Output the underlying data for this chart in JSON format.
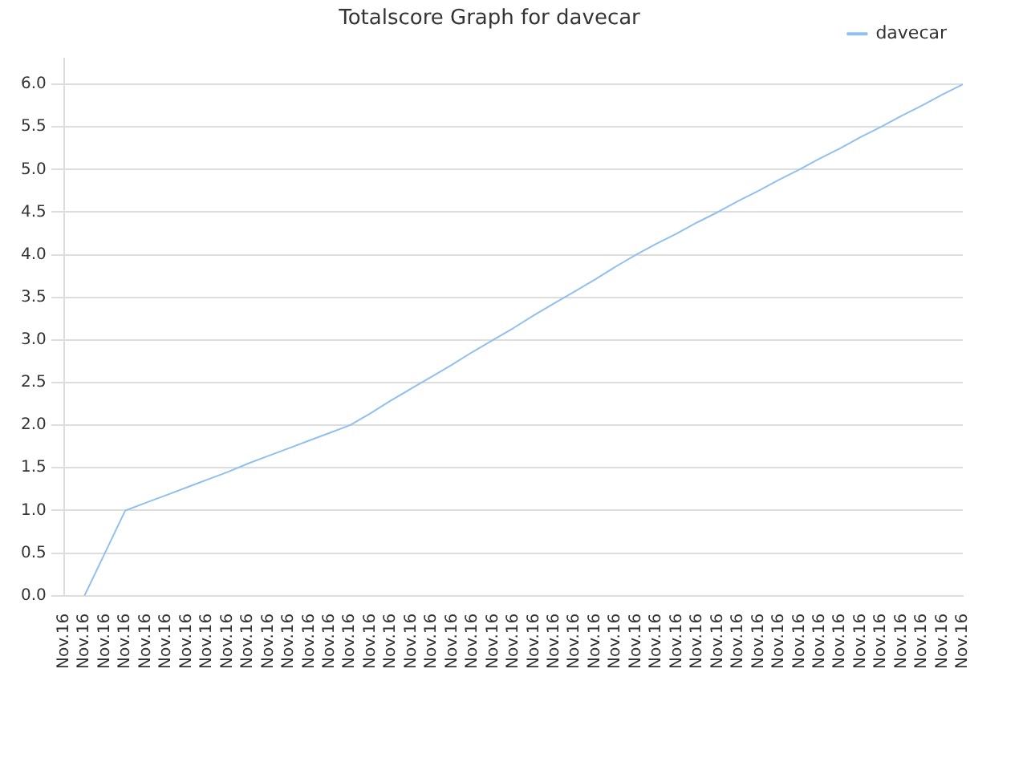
{
  "chart_data": {
    "type": "line",
    "title": "Totalscore Graph for davecar",
    "categories": [
      "Nov.16",
      "Nov.16",
      "Nov.16",
      "Nov.16",
      "Nov.16",
      "Nov.16",
      "Nov.16",
      "Nov.16",
      "Nov.16",
      "Nov.16",
      "Nov.16",
      "Nov.16",
      "Nov.16",
      "Nov.16",
      "Nov.16",
      "Nov.16",
      "Nov.16",
      "Nov.16",
      "Nov.16",
      "Nov.16",
      "Nov.16",
      "Nov.16",
      "Nov.16",
      "Nov.16",
      "Nov.16",
      "Nov.16",
      "Nov.16",
      "Nov.16",
      "Nov.16",
      "Nov.16",
      "Nov.16",
      "Nov.16",
      "Nov.16",
      "Nov.16",
      "Nov.16",
      "Nov.16",
      "Nov.16",
      "Nov.16",
      "Nov.16",
      "Nov.16",
      "Nov.16",
      "Nov.16",
      "Nov.16",
      "Nov.16",
      "Nov.16"
    ],
    "series": [
      {
        "name": "davecar",
        "color": "#90c0f0",
        "values": [
          null,
          0,
          0.5,
          1.0,
          1.09,
          1.18,
          1.27,
          1.36,
          1.45,
          1.55,
          1.64,
          1.73,
          1.82,
          1.91,
          2.0,
          2.14,
          2.29,
          2.43,
          2.57,
          2.71,
          2.86,
          3.0,
          3.14,
          3.29,
          3.43,
          3.57,
          3.71,
          3.86,
          4.0,
          4.13,
          4.25,
          4.38,
          4.5,
          4.63,
          4.75,
          4.88,
          5.0,
          5.13,
          5.25,
          5.38,
          5.5,
          5.63,
          5.75,
          5.88,
          6.0
        ]
      }
    ],
    "ylim": [
      0,
      6.3
    ],
    "yticks": [
      {
        "value": 0,
        "label": "0.0"
      },
      0.5,
      {
        "value": 1,
        "label": "1.0"
      },
      1.5,
      {
        "value": 2,
        "label": "2.0"
      },
      2.5,
      {
        "value": 3,
        "label": "3.0"
      },
      3.5,
      {
        "value": 4,
        "label": "4.0"
      },
      4.5,
      {
        "value": 5,
        "label": "5.0"
      },
      5.5,
      {
        "value": 6,
        "label": "6.0"
      }
    ],
    "grid": "y",
    "legend": "top right",
    "marker": "none",
    "line_style": "solid"
  }
}
